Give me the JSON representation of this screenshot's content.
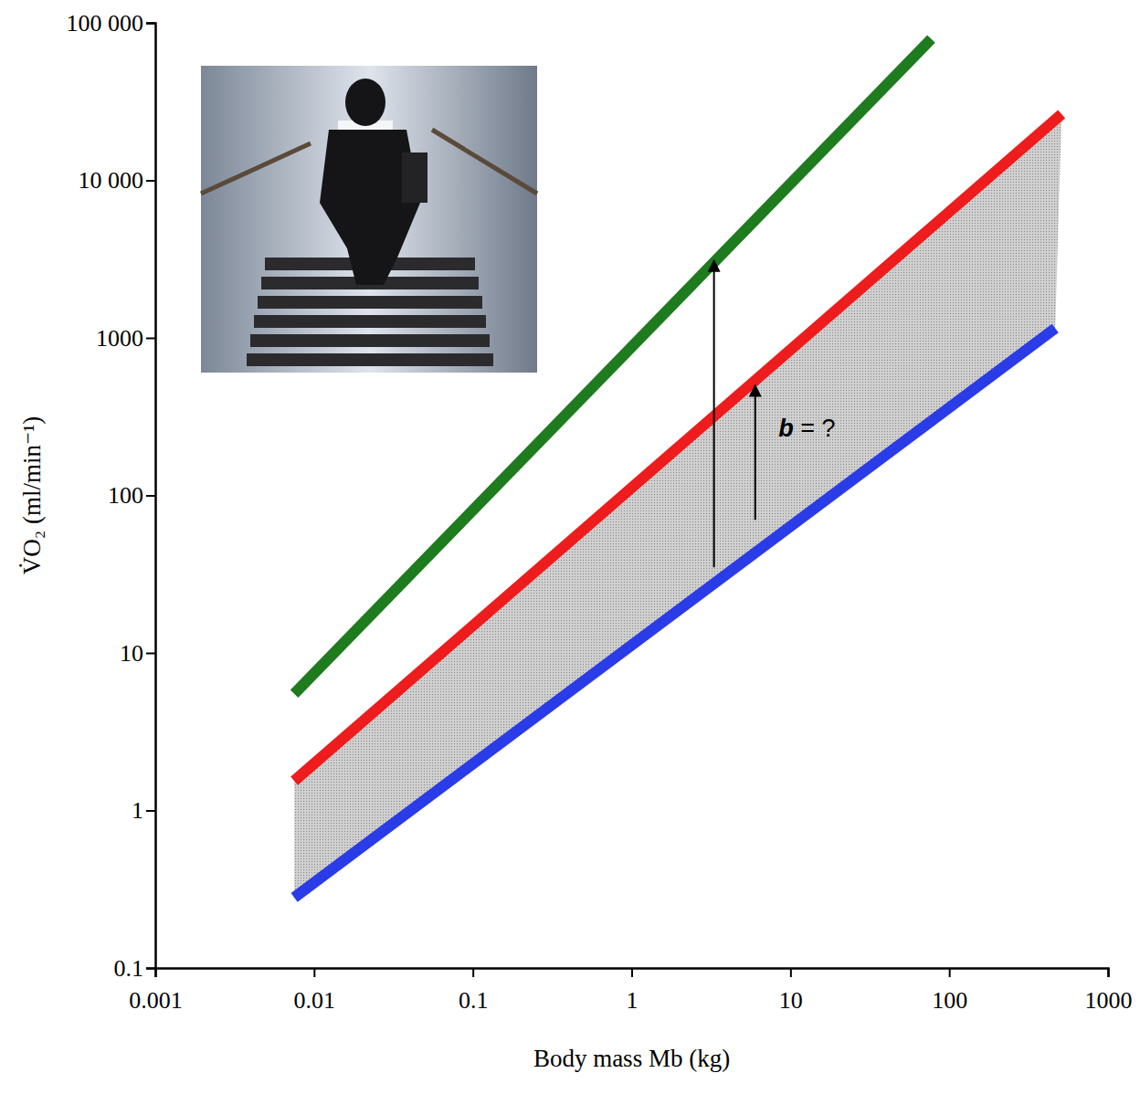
{
  "chart_data": {
    "type": "line",
    "log": true,
    "xlabel": "Body mass Mb (kg)",
    "ylabel": "V̇O₂ (ml/min⁻¹)",
    "xlim": [
      0.001,
      1000
    ],
    "ylim": [
      0.1,
      100000
    ],
    "xticks": [
      0.001,
      0.01,
      0.1,
      1,
      10,
      100,
      1000
    ],
    "yticks": [
      0.1,
      1,
      10,
      100,
      1000,
      {
        "value": 10000,
        "label": "10 000"
      },
      {
        "value": 100000,
        "label": "100 000"
      }
    ],
    "series": [
      {
        "color": "#1e7b1e",
        "x": [
          0.0075,
          77
        ],
        "values": [
          5.5,
          79000
        ]
      },
      {
        "color": "#ee1c1c",
        "x": [
          0.0075,
          510
        ],
        "values": [
          1.54,
          26300
        ]
      },
      {
        "color": "#2a3be8",
        "x": [
          0.0075,
          465
        ],
        "values": [
          0.28,
          1150
        ]
      }
    ],
    "arrows": [
      {
        "x": 3.3,
        "y": [
          35,
          3100
        ]
      },
      {
        "x": 6,
        "y": [
          70,
          500
        ]
      }
    ],
    "annotations": [
      {
        "text": "b = ?",
        "x": 8.4,
        "y": 260
      }
    ]
  }
}
